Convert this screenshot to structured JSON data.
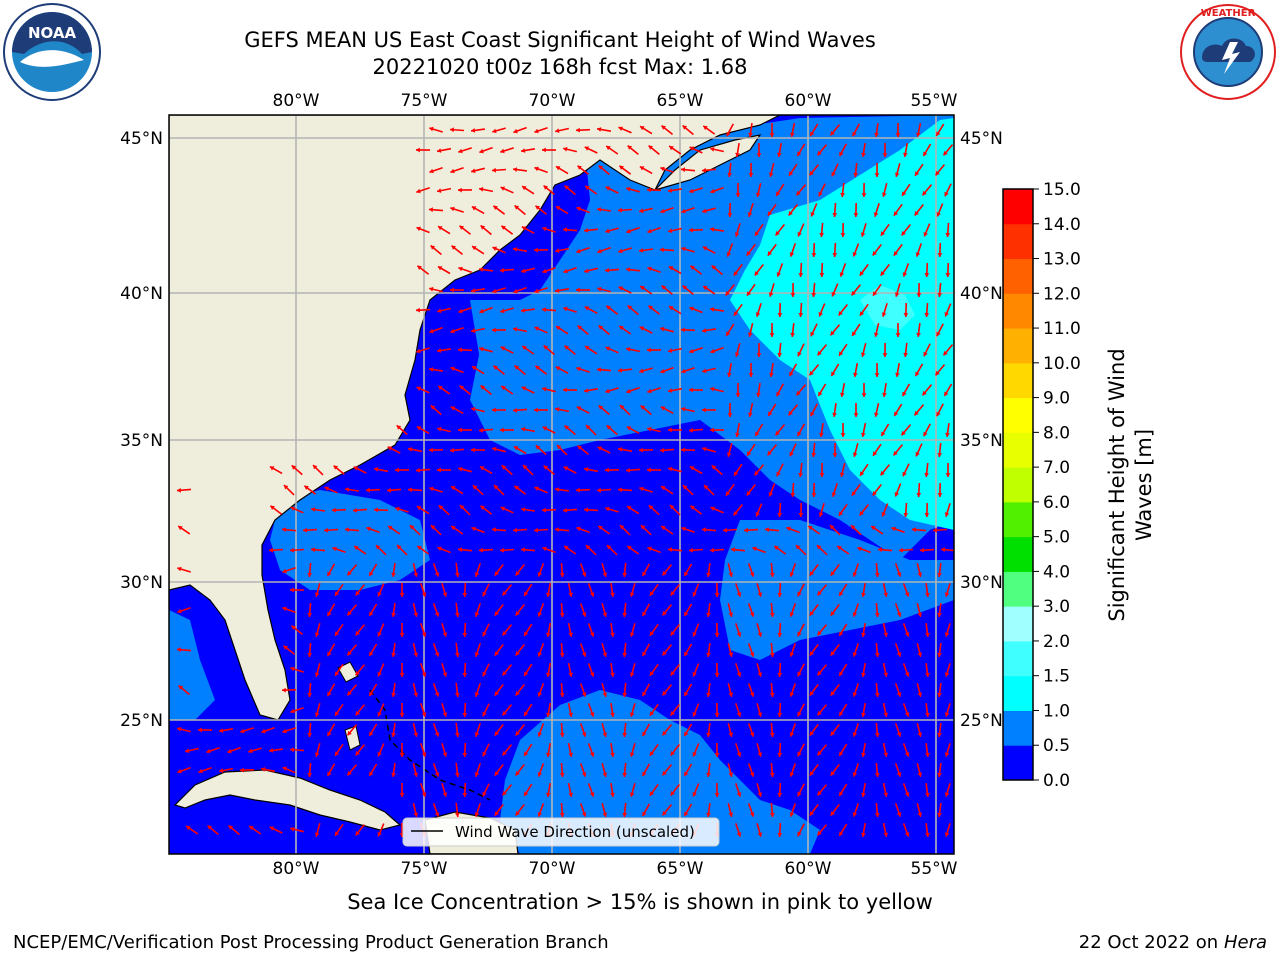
{
  "header": {
    "title_line1": "GEFS MEAN US East Coast Significant Height of Wind Waves",
    "title_line2": "20221020 t00z 168h fcst   Max: 1.68"
  },
  "logos": {
    "left": {
      "icon": "noaa-logo-icon",
      "text": "NOAA",
      "ring_text": "NATIONAL OCEANIC AND ATMOSPHERIC ADMINISTRATION · U.S. DEPARTMENT OF COMMERCE"
    },
    "right": {
      "icon": "nws-logo-icon",
      "ring_text": "NATIONAL WEATHER SERVICE"
    }
  },
  "map": {
    "lon_ticks_top": [
      "80°W",
      "75°W",
      "70°W",
      "65°W",
      "60°W",
      "55°W"
    ],
    "lon_ticks_bottom": [
      "80°W",
      "75°W",
      "70°W",
      "65°W",
      "60°W",
      "55°W"
    ],
    "lat_ticks_left": [
      "45°N",
      "40°N",
      "35°N",
      "30°N",
      "25°N"
    ],
    "lat_ticks_right": [
      "45°N",
      "40°N",
      "35°N",
      "30°N",
      "25°N"
    ],
    "legend_label": "Wind Wave Direction (unscaled)",
    "colors": {
      "land": "#efeedc",
      "arrow": "#ff0000",
      "grid": "#b4b4b4"
    }
  },
  "colorbar": {
    "label_line1": "Significant Height of Wind",
    "label_line2": "Waves [m]",
    "ticks": [
      "0.0",
      "0.5",
      "1.0",
      "1.5",
      "2.0",
      "3.0",
      "4.0",
      "5.0",
      "6.0",
      "7.0",
      "8.0",
      "9.0",
      "10.0",
      "11.0",
      "12.0",
      "13.0",
      "14.0",
      "15.0"
    ],
    "colors": [
      "#0000ff",
      "#0080ff",
      "#00ffff",
      "#40ffff",
      "#a0ffff",
      "#50ff80",
      "#00e000",
      "#50f000",
      "#c0ff00",
      "#e8ff00",
      "#ffff00",
      "#ffd800",
      "#ffb000",
      "#ff8800",
      "#ff6000",
      "#ff3000",
      "#ff0000"
    ]
  },
  "caption": "Sea Ice Concentration > 15% is shown in pink to yellow",
  "footer": {
    "left": "NCEP/EMC/Verification Post Processing Product Generation Branch",
    "right_date": "22 Oct 2022 on ",
    "right_host": "Hera"
  }
}
